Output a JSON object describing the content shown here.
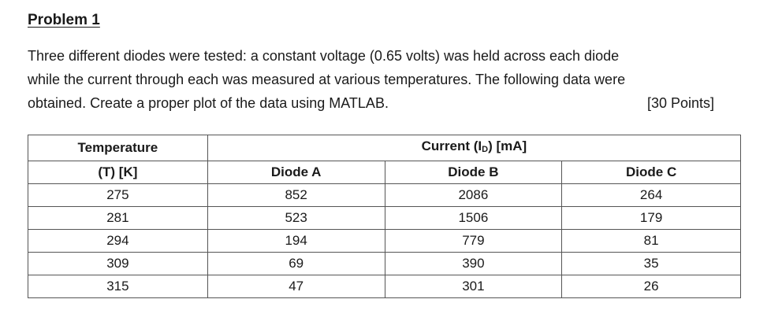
{
  "problem": {
    "title": "Problem 1",
    "paragraph_lines": [
      "Three different diodes were tested: a constant voltage (0.65 volts) was held across each diode",
      "while the current through each was measured at various temperatures. The following data were",
      "obtained. Create a proper plot of the data using MATLAB."
    ],
    "points": "[30 Points]"
  },
  "table": {
    "temp_header_line1": "Temperature",
    "temp_header_line2": "(T) [K]",
    "current_header_prefix": "Current (I",
    "current_header_sub": "D",
    "current_header_suffix": ") [mA]",
    "columns": [
      "Diode A",
      "Diode B",
      "Diode C"
    ],
    "rows": [
      {
        "t": "275",
        "a": "852",
        "b": "2086",
        "c": "264"
      },
      {
        "t": "281",
        "a": "523",
        "b": "1506",
        "c": "179"
      },
      {
        "t": "294",
        "a": "194",
        "b": "779",
        "c": "81"
      },
      {
        "t": "309",
        "a": "69",
        "b": "390",
        "c": "35"
      },
      {
        "t": "315",
        "a": "47",
        "b": "301",
        "c": "26"
      }
    ]
  }
}
